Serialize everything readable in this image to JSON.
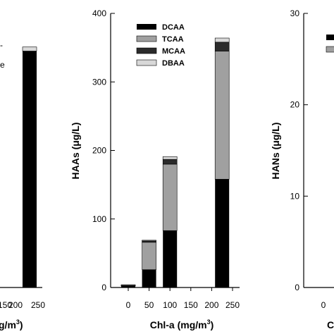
{
  "colors": {
    "DCAA": "#000000",
    "TCAA": "#a0a0a0",
    "MCAA": "#2b2b2b",
    "DBAA": "#d8d8d8"
  },
  "chart_data": [
    {
      "type": "bar",
      "stacked": true,
      "series_order": [
        "DCAA",
        "TCAA",
        "MCAA",
        "DBAA"
      ],
      "xticks": [
        "150",
        "200",
        "250"
      ],
      "xlabel_visible": "g/m",
      "bars": [
        {
          "x": 225,
          "DCAA": 345,
          "TCAA": 0,
          "MCAA": 0,
          "DBAA": 6
        }
      ],
      "side_marks": [
        "-",
        "e"
      ]
    },
    {
      "type": "bar",
      "stacked": true,
      "series": [
        "DCAA",
        "TCAA",
        "MCAA",
        "DBAA"
      ],
      "legend": [
        "DCAA",
        "TCAA",
        "MCAA",
        "DBAA"
      ],
      "legend_position": "top-left",
      "ylabel": "HAAs  (μg/L)",
      "xlabel": "Chl-a  (mg/m",
      "xlabel_sup": "3",
      "xlabel_close": ")",
      "ylim": [
        0,
        400
      ],
      "yticks": [
        "0",
        "100",
        "200",
        "300",
        "400"
      ],
      "xticks": [
        "0",
        "50",
        "100",
        "150",
        "200",
        "250"
      ],
      "xtick_values": [
        0,
        50,
        100,
        150,
        200,
        250
      ],
      "bars": [
        {
          "x": 0,
          "DCAA": 2,
          "TCAA": 1,
          "MCAA": 0.5,
          "DBAA": 0.5
        },
        {
          "x": 50,
          "DCAA": 26,
          "TCAA": 40,
          "MCAA": 2,
          "DBAA": 1
        },
        {
          "x": 100,
          "DCAA": 83,
          "TCAA": 97,
          "MCAA": 7,
          "DBAA": 4
        },
        {
          "x": 225,
          "DCAA": 158,
          "TCAA": 187,
          "MCAA": 13,
          "DBAA": 6
        }
      ]
    },
    {
      "type": "bar",
      "ylabel": "HANs  (μg/L)",
      "ylim": [
        0,
        30
      ],
      "yticks": [
        "0",
        "10",
        "20",
        "30"
      ],
      "xticks": [
        "0"
      ],
      "xlabel_visible": "C"
    }
  ]
}
